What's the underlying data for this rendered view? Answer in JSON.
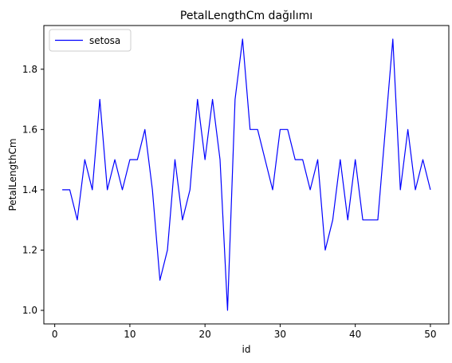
{
  "chart_data": {
    "type": "line",
    "title": "PetalLengthCm dağılımı",
    "xlabel": "id",
    "ylabel": "PetalLengthCm",
    "xlim": [
      -1.45,
      52.45
    ],
    "ylim": [
      0.955,
      1.945
    ],
    "xticks": [
      0,
      10,
      20,
      30,
      40,
      50
    ],
    "xtick_labels": [
      "0",
      "10",
      "20",
      "30",
      "40",
      "50"
    ],
    "yticks": [
      1.0,
      1.2,
      1.4,
      1.6,
      1.8
    ],
    "ytick_labels": [
      "1.0",
      "1.2",
      "1.4",
      "1.6",
      "1.8"
    ],
    "grid": false,
    "legend_position": "top-left",
    "series": [
      {
        "name": "setosa",
        "color": "#0000ff",
        "x": [
          1,
          2,
          3,
          4,
          5,
          6,
          7,
          8,
          9,
          10,
          11,
          12,
          13,
          14,
          15,
          16,
          17,
          18,
          19,
          20,
          21,
          22,
          23,
          24,
          25,
          26,
          27,
          28,
          29,
          30,
          31,
          32,
          33,
          34,
          35,
          36,
          37,
          38,
          39,
          40,
          41,
          42,
          43,
          44,
          45,
          46,
          47,
          48,
          49,
          50
        ],
        "values": [
          1.4,
          1.4,
          1.3,
          1.5,
          1.4,
          1.7,
          1.4,
          1.5,
          1.4,
          1.5,
          1.5,
          1.6,
          1.4,
          1.1,
          1.2,
          1.5,
          1.3,
          1.4,
          1.7,
          1.5,
          1.7,
          1.5,
          1.0,
          1.7,
          1.9,
          1.6,
          1.6,
          1.5,
          1.4,
          1.6,
          1.6,
          1.5,
          1.5,
          1.4,
          1.5,
          1.2,
          1.3,
          1.5,
          1.3,
          1.5,
          1.3,
          1.3,
          1.3,
          1.6,
          1.9,
          1.4,
          1.6,
          1.4,
          1.5,
          1.4
        ]
      }
    ]
  }
}
